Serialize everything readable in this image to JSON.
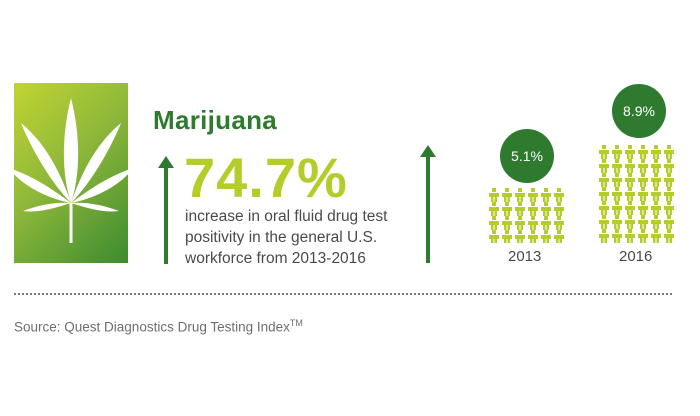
{
  "title": "Marijuana",
  "headline_percent": "74.7%",
  "description_lines": [
    "increase in oral fluid drug test",
    "positivity in the general U.S.",
    "workforce from 2013-2016"
  ],
  "comparison": [
    {
      "year": "2013",
      "value": "5.1%",
      "rate": 5.1
    },
    {
      "year": "2016",
      "value": "8.9%",
      "rate": 8.9
    }
  ],
  "source_text": "Source: Quest Diagnostics Drug Testing Index",
  "source_tm": "TM",
  "colors": {
    "dark_green": "#2e7a2e",
    "lime": "#b6cc2b",
    "text_gray": "#4a4a4a"
  },
  "icons": [
    "cannabis-leaf-icon",
    "up-arrow-icon",
    "person-icon"
  ]
}
